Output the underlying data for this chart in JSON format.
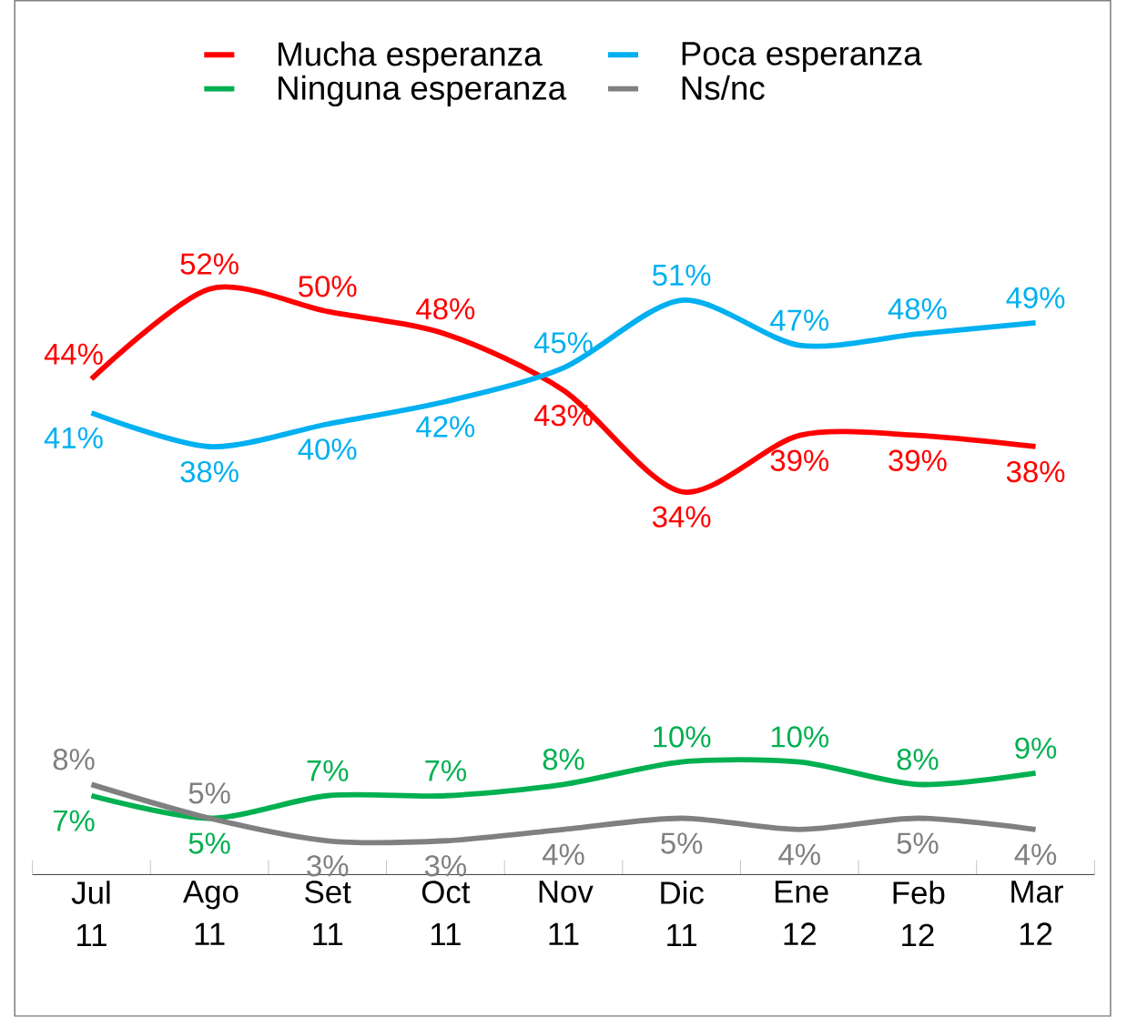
{
  "chart_data": {
    "type": "line",
    "legend": "top",
    "categories": [
      "Jul 11",
      "Ago 11",
      "Set 11",
      "Oct 11",
      "Nov 11",
      "Dic 11",
      "Ene 12",
      "Feb 12",
      "Mar 12"
    ],
    "series": [
      {
        "name": "Mucha esperanza",
        "color": "#ff0000",
        "values": [
          44,
          52,
          50,
          48,
          43,
          34,
          39,
          39,
          38
        ],
        "value_labels": [
          "44%",
          "52%",
          "50%",
          "48%",
          "43%",
          "34%",
          "39%",
          "39%",
          "38%"
        ]
      },
      {
        "name": "Poca esperanza",
        "color": "#00b0f0",
        "values": [
          41,
          38,
          40,
          42,
          45,
          51,
          47,
          48,
          49
        ],
        "value_labels": [
          "41%",
          "38%",
          "40%",
          "42%",
          "45%",
          "51%",
          "47%",
          "48%",
          "49%"
        ]
      },
      {
        "name": "Ninguna esperanza",
        "color": "#00b050",
        "values": [
          7,
          5,
          7,
          7,
          8,
          10,
          10,
          8,
          9
        ],
        "value_labels": [
          "7%",
          "5%",
          "7%",
          "7%",
          "8%",
          "10%",
          "10%",
          "8%",
          "9%"
        ]
      },
      {
        "name": "Ns/nc",
        "color": "#808080",
        "values": [
          8,
          5,
          3,
          3,
          4,
          5,
          4,
          5,
          4
        ],
        "value_labels": [
          "8%",
          "5%",
          "3%",
          "3%",
          "4%",
          "5%",
          "4%",
          "5%",
          "4%"
        ]
      }
    ]
  }
}
